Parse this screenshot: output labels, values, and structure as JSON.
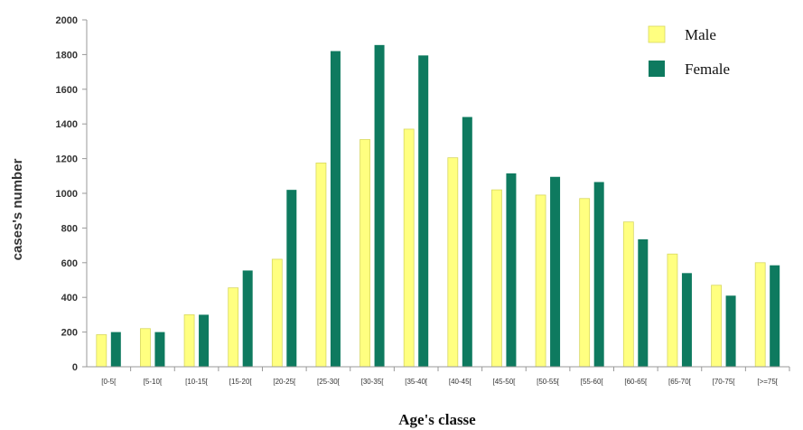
{
  "chart_data": {
    "type": "bar",
    "xlabel": "Age's classe",
    "ylabel": "cases's number",
    "ylim": [
      0,
      2000
    ],
    "yticks": [
      0,
      200,
      400,
      600,
      800,
      1000,
      1200,
      1400,
      1600,
      1800,
      2000
    ],
    "grid": false,
    "legend_position": "top-right",
    "categories": [
      "[0-5[",
      "[5-10[",
      "[10-15[",
      "[15-20[",
      "[20-25[",
      "[25-30[",
      "[30-35[",
      "[35-40[",
      "[40-45[",
      "[45-50[",
      "[50-55[",
      "[55-60[",
      "[60-65[",
      "[65-70[",
      "[70-75[",
      "[>=75["
    ],
    "series": [
      {
        "name": "Male",
        "color": "#ffff80",
        "values": [
          185,
          220,
          300,
          455,
          620,
          1175,
          1310,
          1370,
          1205,
          1020,
          990,
          970,
          835,
          650,
          470,
          600
        ]
      },
      {
        "name": "Female",
        "color": "#0e7a5f",
        "values": [
          200,
          200,
          300,
          555,
          1020,
          1820,
          1855,
          1795,
          1440,
          1115,
          1095,
          1065,
          735,
          540,
          410,
          585
        ]
      }
    ]
  }
}
